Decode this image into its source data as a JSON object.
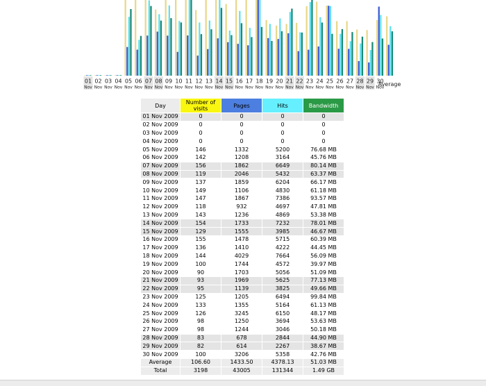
{
  "colors": {
    "visits": "#e8d98c",
    "pages": "#3d5bd6",
    "hits": "#64e0ec",
    "bandwidth": "#1a8a78",
    "weekend_label_bg": "#e4e4e4"
  },
  "chart_data": {
    "type": "bar",
    "title": "",
    "categories": [
      "01",
      "02",
      "03",
      "04",
      "05",
      "06",
      "07",
      "08",
      "09",
      "10",
      "11",
      "12",
      "13",
      "14",
      "15",
      "16",
      "17",
      "18",
      "19",
      "20",
      "21",
      "22",
      "23",
      "24",
      "25",
      "26",
      "27",
      "28",
      "29",
      "30"
    ],
    "month_label": "Nov",
    "average_label": "Average",
    "weekend_days": [
      "01",
      "07",
      "08",
      "14",
      "15",
      "21",
      "22",
      "28",
      "29"
    ],
    "series": [
      {
        "key": "visits",
        "values": [
          0,
          0,
          0,
          0,
          146,
          142,
          156,
          119,
          137,
          149,
          147,
          118,
          143,
          154,
          129,
          155,
          136,
          144,
          100,
          90,
          93,
          95,
          125,
          133,
          126,
          98,
          98,
          83,
          82,
          100
        ],
        "average": 106.6
      },
      {
        "key": "pages",
        "values": [
          0,
          0,
          0,
          0,
          1332,
          1208,
          1862,
          2046,
          1859,
          1106,
          1867,
          932,
          1236,
          1733,
          1555,
          1478,
          1410,
          4029,
          1744,
          1703,
          1969,
          1139,
          1205,
          1355,
          3245,
          1250,
          1244,
          678,
          614,
          3206
        ],
        "average": 1433.5
      },
      {
        "key": "hits",
        "values": [
          0,
          0,
          0,
          0,
          5200,
          3164,
          6649,
          5432,
          6204,
          4830,
          7386,
          4697,
          4869,
          7232,
          3985,
          5715,
          4222,
          7664,
          4572,
          5056,
          5625,
          3825,
          6494,
          5164,
          6150,
          3694,
          3046,
          2844,
          2267,
          5358
        ],
        "average": 4378.13
      },
      {
        "key": "bandwidth",
        "unit": "MB",
        "values": [
          0,
          0,
          0,
          0,
          76.68,
          45.76,
          80.14,
          63.37,
          66.17,
          61.18,
          93.57,
          47.81,
          53.38,
          78.01,
          46.67,
          60.39,
          44.45,
          56.09,
          39.97,
          51.09,
          77.13,
          49.66,
          99.84,
          61.13,
          48.17,
          53.63,
          50.18,
          44.9,
          38.67,
          42.76
        ],
        "average": 51.03
      }
    ]
  },
  "table": {
    "headers": {
      "day": "Day",
      "visits": "Number of visits",
      "pages": "Pages",
      "hits": "Hits",
      "bandwidth": "Bandwidth"
    },
    "rows": [
      {
        "day": "01 Nov 2009",
        "visits": "0",
        "pages": "0",
        "hits": "0",
        "bandwidth": "0",
        "weekend": true
      },
      {
        "day": "02 Nov 2009",
        "visits": "0",
        "pages": "0",
        "hits": "0",
        "bandwidth": "0",
        "weekend": false
      },
      {
        "day": "03 Nov 2009",
        "visits": "0",
        "pages": "0",
        "hits": "0",
        "bandwidth": "0",
        "weekend": false
      },
      {
        "day": "04 Nov 2009",
        "visits": "0",
        "pages": "0",
        "hits": "0",
        "bandwidth": "0",
        "weekend": false
      },
      {
        "day": "05 Nov 2009",
        "visits": "146",
        "pages": "1332",
        "hits": "5200",
        "bandwidth": "76.68 MB",
        "weekend": false
      },
      {
        "day": "06 Nov 2009",
        "visits": "142",
        "pages": "1208",
        "hits": "3164",
        "bandwidth": "45.76 MB",
        "weekend": false
      },
      {
        "day": "07 Nov 2009",
        "visits": "156",
        "pages": "1862",
        "hits": "6649",
        "bandwidth": "80.14 MB",
        "weekend": true
      },
      {
        "day": "08 Nov 2009",
        "visits": "119",
        "pages": "2046",
        "hits": "5432",
        "bandwidth": "63.37 MB",
        "weekend": true
      },
      {
        "day": "09 Nov 2009",
        "visits": "137",
        "pages": "1859",
        "hits": "6204",
        "bandwidth": "66.17 MB",
        "weekend": false
      },
      {
        "day": "10 Nov 2009",
        "visits": "149",
        "pages": "1106",
        "hits": "4830",
        "bandwidth": "61.18 MB",
        "weekend": false
      },
      {
        "day": "11 Nov 2009",
        "visits": "147",
        "pages": "1867",
        "hits": "7386",
        "bandwidth": "93.57 MB",
        "weekend": false
      },
      {
        "day": "12 Nov 2009",
        "visits": "118",
        "pages": "932",
        "hits": "4697",
        "bandwidth": "47.81 MB",
        "weekend": false
      },
      {
        "day": "13 Nov 2009",
        "visits": "143",
        "pages": "1236",
        "hits": "4869",
        "bandwidth": "53.38 MB",
        "weekend": false
      },
      {
        "day": "14 Nov 2009",
        "visits": "154",
        "pages": "1733",
        "hits": "7232",
        "bandwidth": "78.01 MB",
        "weekend": true
      },
      {
        "day": "15 Nov 2009",
        "visits": "129",
        "pages": "1555",
        "hits": "3985",
        "bandwidth": "46.67 MB",
        "weekend": true
      },
      {
        "day": "16 Nov 2009",
        "visits": "155",
        "pages": "1478",
        "hits": "5715",
        "bandwidth": "60.39 MB",
        "weekend": false
      },
      {
        "day": "17 Nov 2009",
        "visits": "136",
        "pages": "1410",
        "hits": "4222",
        "bandwidth": "44.45 MB",
        "weekend": false
      },
      {
        "day": "18 Nov 2009",
        "visits": "144",
        "pages": "4029",
        "hits": "7664",
        "bandwidth": "56.09 MB",
        "weekend": false
      },
      {
        "day": "19 Nov 2009",
        "visits": "100",
        "pages": "1744",
        "hits": "4572",
        "bandwidth": "39.97 MB",
        "weekend": false
      },
      {
        "day": "20 Nov 2009",
        "visits": "90",
        "pages": "1703",
        "hits": "5056",
        "bandwidth": "51.09 MB",
        "weekend": false
      },
      {
        "day": "21 Nov 2009",
        "visits": "93",
        "pages": "1969",
        "hits": "5625",
        "bandwidth": "77.13 MB",
        "weekend": true
      },
      {
        "day": "22 Nov 2009",
        "visits": "95",
        "pages": "1139",
        "hits": "3825",
        "bandwidth": "49.66 MB",
        "weekend": true
      },
      {
        "day": "23 Nov 2009",
        "visits": "125",
        "pages": "1205",
        "hits": "6494",
        "bandwidth": "99.84 MB",
        "weekend": false
      },
      {
        "day": "24 Nov 2009",
        "visits": "133",
        "pages": "1355",
        "hits": "5164",
        "bandwidth": "61.13 MB",
        "weekend": false
      },
      {
        "day": "25 Nov 2009",
        "visits": "126",
        "pages": "3245",
        "hits": "6150",
        "bandwidth": "48.17 MB",
        "weekend": false
      },
      {
        "day": "26 Nov 2009",
        "visits": "98",
        "pages": "1250",
        "hits": "3694",
        "bandwidth": "53.63 MB",
        "weekend": false
      },
      {
        "day": "27 Nov 2009",
        "visits": "98",
        "pages": "1244",
        "hits": "3046",
        "bandwidth": "50.18 MB",
        "weekend": false
      },
      {
        "day": "28 Nov 2009",
        "visits": "83",
        "pages": "678",
        "hits": "2844",
        "bandwidth": "44.90 MB",
        "weekend": true
      },
      {
        "day": "29 Nov 2009",
        "visits": "82",
        "pages": "614",
        "hits": "2267",
        "bandwidth": "38.67 MB",
        "weekend": true
      },
      {
        "day": "30 Nov 2009",
        "visits": "100",
        "pages": "3206",
        "hits": "5358",
        "bandwidth": "42.76 MB",
        "weekend": false
      }
    ],
    "average": {
      "label": "Average",
      "visits": "106.60",
      "pages": "1433.50",
      "hits": "4378.13",
      "bandwidth": "51.03 MB"
    },
    "total": {
      "label": "Total",
      "visits": "3198",
      "pages": "43005",
      "hits": "131344",
      "bandwidth": "1.49 GB"
    }
  }
}
